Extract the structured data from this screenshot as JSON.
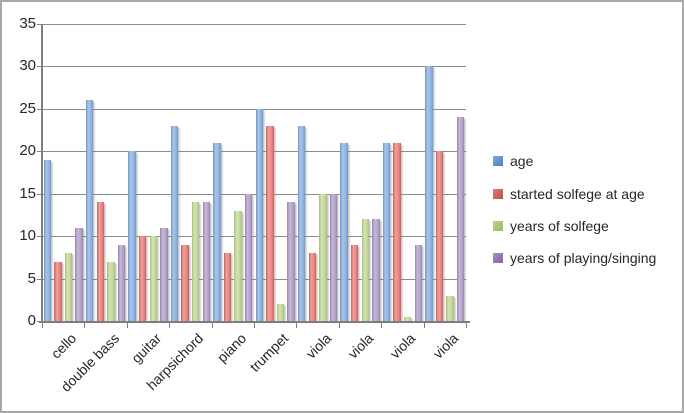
{
  "chart_data": {
    "type": "bar",
    "title": "",
    "categories": [
      "cello",
      "double bass",
      "guitar",
      "harpsichord",
      "piano",
      "trumpet",
      "viola",
      "viola",
      "viola",
      "viola"
    ],
    "series": [
      {
        "name": "age",
        "values": [
          19,
          26,
          20,
          23,
          21,
          25,
          23,
          21,
          21,
          30
        ],
        "color": {
          "main": "#8FB2DC",
          "light": "#A9C6E8",
          "dark": "#7096C9",
          "legend_light": "#7FA8DC",
          "legend_dark": "#4F81BD"
        }
      },
      {
        "name": "started solfege at age",
        "values": [
          7,
          14,
          10,
          9,
          8,
          23,
          8,
          9,
          21,
          20
        ],
        "color": {
          "main": "#E4837F",
          "light": "#EFA29E",
          "dark": "#CA615D",
          "legend_light": "#DD7A76",
          "legend_dark": "#C0504D"
        }
      },
      {
        "name": "years of solfege",
        "values": [
          8,
          7,
          10,
          14,
          13,
          2,
          15,
          12,
          0.5,
          3
        ],
        "color": {
          "main": "#C3D69B",
          "light": "#D6E3B5",
          "dark": "#A6C274",
          "legend_light": "#BCD389",
          "legend_dark": "#9BBB59"
        }
      },
      {
        "name": "years of playing/singing",
        "values": [
          11,
          9,
          11,
          14,
          15,
          14,
          15,
          12,
          9,
          24
        ],
        "color": {
          "main": "#B3A2C8",
          "light": "#C6B9D7",
          "dark": "#9583B5",
          "legend_light": "#A895C0",
          "legend_dark": "#8064A2"
        }
      }
    ],
    "ylim": [
      0,
      35
    ],
    "ytick_step": 5,
    "ytick_labels": [
      "0",
      "5",
      "10",
      "15",
      "20",
      "25",
      "30",
      "35"
    ],
    "grid": true,
    "legend_position": "right",
    "xlabel": "",
    "ylabel": ""
  }
}
